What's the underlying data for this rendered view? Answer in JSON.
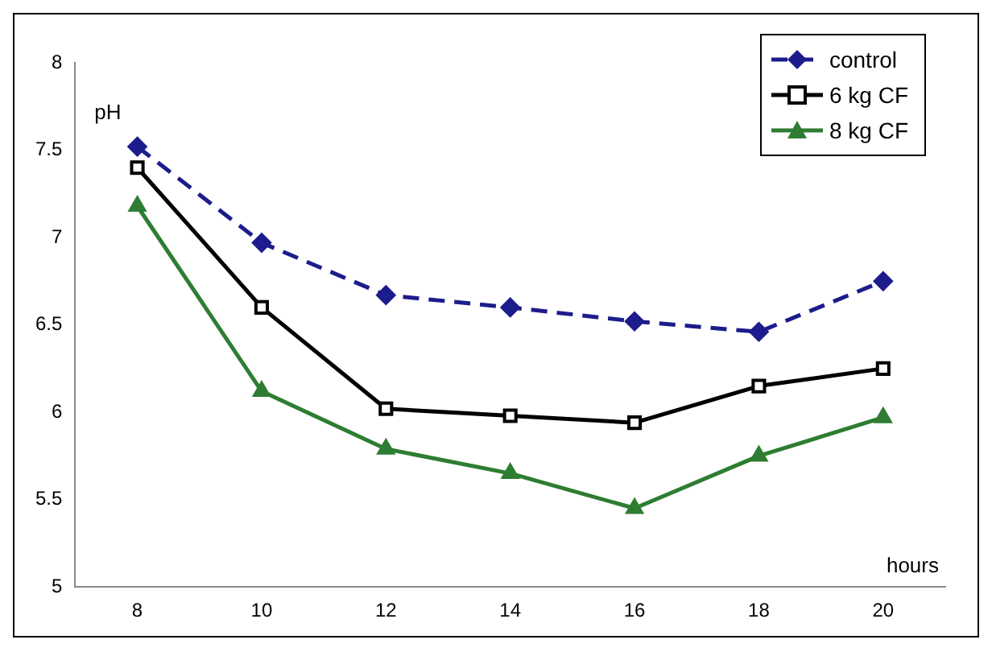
{
  "chart_data": {
    "type": "line",
    "xlabel": "hours",
    "ylabel": "pH",
    "categories": [
      "8",
      "10",
      "12",
      "14",
      "16",
      "18",
      "20"
    ],
    "series": [
      {
        "name": "control",
        "color": "#1c1c8c",
        "marker": "diamond",
        "line_style": "dashed",
        "values": [
          7.52,
          6.97,
          6.67,
          6.6,
          6.52,
          6.46,
          6.75
        ]
      },
      {
        "name": "6 kg CF",
        "color": "#000000",
        "marker": "square",
        "line_style": "solid",
        "values": [
          7.4,
          6.6,
          6.02,
          5.98,
          5.94,
          6.15,
          6.25
        ]
      },
      {
        "name": "8 kg CF",
        "color": "#2e7d32",
        "marker": "triangle",
        "line_style": "solid",
        "values": [
          7.18,
          6.12,
          5.79,
          5.65,
          5.45,
          5.75,
          5.97
        ]
      }
    ],
    "ylim": [
      5,
      8
    ],
    "yticks": [
      5,
      5.5,
      6,
      6.5,
      7,
      7.5,
      8
    ],
    "grid": false,
    "legend": "top right"
  }
}
